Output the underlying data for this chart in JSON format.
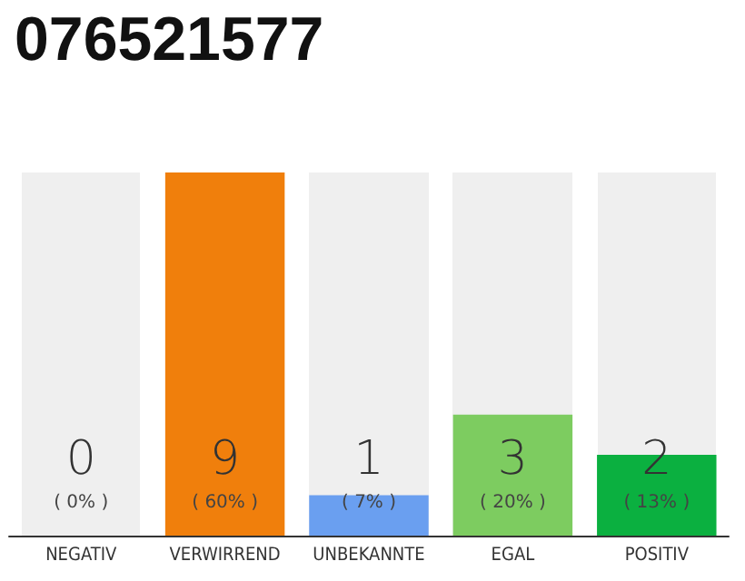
{
  "chart_data": {
    "type": "bar",
    "title": "076521577",
    "categories": [
      "NEGATIV",
      "VERWIRREND",
      "UNBEKANNTE",
      "EGAL",
      "POSITIV"
    ],
    "values": [
      0,
      9,
      1,
      3,
      2
    ],
    "colors": [
      "#999999",
      "#f07f0c",
      "#6a9ff0",
      "#7dcc60",
      "#0bb040"
    ],
    "data_labels": true,
    "annotations": [
      "( 0% )",
      "( 60% )",
      "( 7% )",
      "( 20% )",
      "( 13% )"
    ],
    "bands": [
      {
        "axis": "x",
        "from": "NEGATIV",
        "to": "NEGATIV",
        "color": "#efefef"
      },
      {
        "axis": "x",
        "from": "UNBEKANNTE",
        "to": "UNBEKANNTE",
        "color": "#efefef"
      },
      {
        "axis": "x",
        "from": "EGAL",
        "to": "EGAL",
        "color": "#efefef"
      },
      {
        "axis": "x",
        "from": "POSITIV",
        "to": "POSITIV",
        "color": "#efefef"
      }
    ]
  }
}
